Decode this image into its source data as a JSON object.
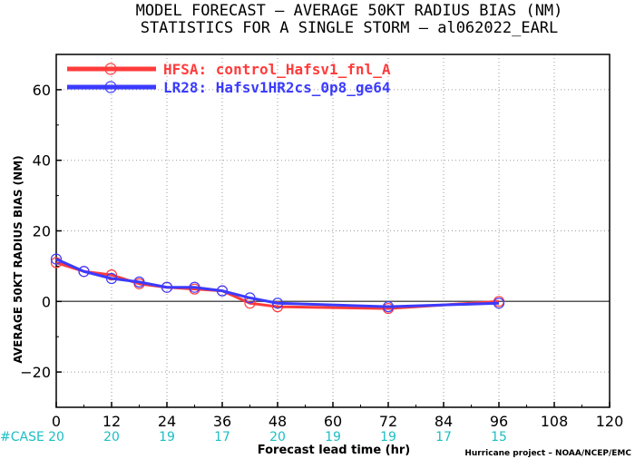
{
  "chart_data": {
    "type": "line",
    "title_line1": "MODEL FORECAST – AVERAGE 50KT RADIUS BIAS (NM)",
    "title_line2": "STATISTICS FOR A SINGLE STORM – al062022_EARL",
    "xlabel": "Forecast lead time (hr)",
    "ylabel": "AVERAGE 50KT RADIUS BIAS (NM)",
    "xlim": [
      0,
      120
    ],
    "ylim": [
      -30,
      70
    ],
    "x_ticks": [
      0,
      12,
      24,
      36,
      48,
      60,
      72,
      84,
      96,
      108,
      120
    ],
    "y_ticks": [
      -20,
      0,
      20,
      40,
      60
    ],
    "grid": true,
    "legend_position": "top-left",
    "series": [
      {
        "name": "HFSA: control_Hafsv1_fnl_A",
        "color": "#ff3b3b",
        "x": [
          0,
          6,
          12,
          18,
          24,
          30,
          36,
          42,
          48,
          72,
          96
        ],
        "y": [
          11,
          8.5,
          7.5,
          5,
          4,
          3.5,
          3,
          -0.5,
          -1.5,
          -2,
          0
        ]
      },
      {
        "name": "LR28: Hafsv1HR2cs_0p8_ge64",
        "color": "#3b3bff",
        "x": [
          0,
          6,
          12,
          18,
          24,
          30,
          36,
          42,
          48,
          72,
          96
        ],
        "y": [
          12,
          8.5,
          6.5,
          5.5,
          4,
          4,
          3,
          1,
          -0.5,
          -1.5,
          -0.5
        ]
      }
    ],
    "case_label": "#CASE",
    "case_counts": [
      {
        "x": 0,
        "count": "20"
      },
      {
        "x": 12,
        "count": "20"
      },
      {
        "x": 24,
        "count": "19"
      },
      {
        "x": 36,
        "count": "17"
      },
      {
        "x": 48,
        "count": "20"
      },
      {
        "x": 60,
        "count": "19"
      },
      {
        "x": 72,
        "count": "19"
      },
      {
        "x": 84,
        "count": "17"
      },
      {
        "x": 96,
        "count": "15"
      }
    ],
    "credit": "Hurricane project – NOAA/NCEP/EMC"
  }
}
